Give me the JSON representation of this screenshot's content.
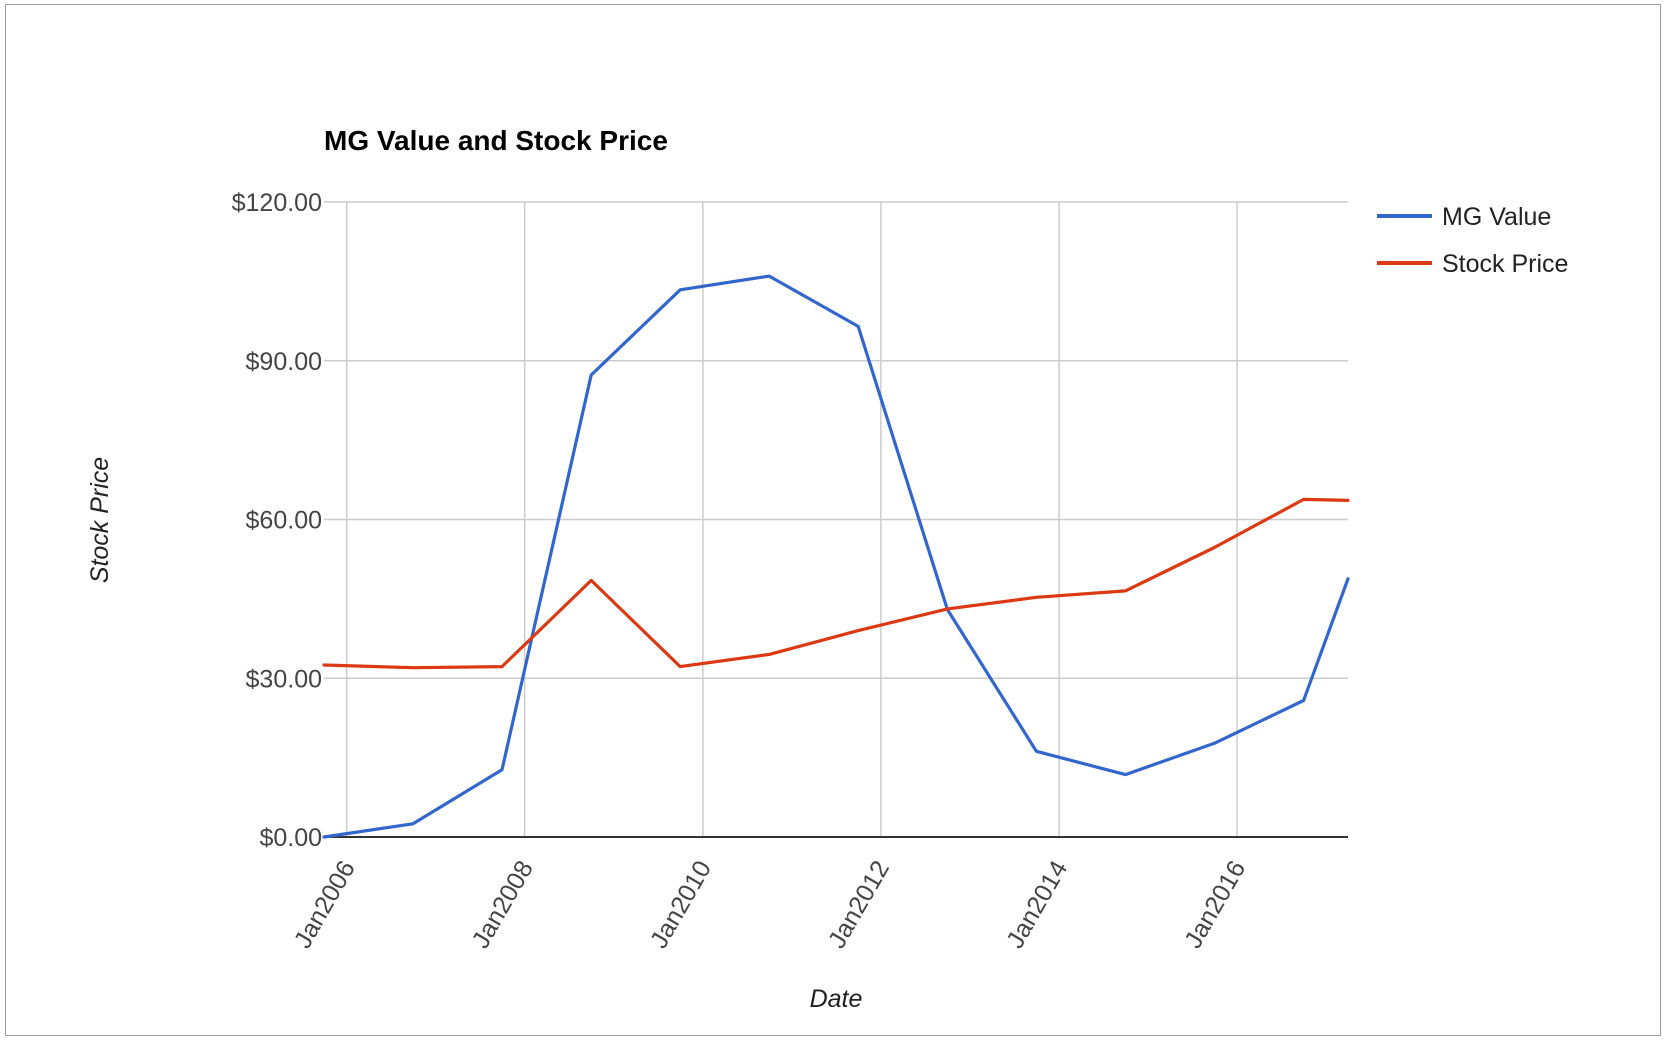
{
  "chart_data": {
    "type": "line",
    "title": "MG Value and Stock Price",
    "xlabel": "Date",
    "ylabel": "Stock Price",
    "x_ticks": [
      "Jan2006",
      "Jan2008",
      "Jan2010",
      "Jan2012",
      "Jan2014",
      "Jan2016"
    ],
    "y_ticks": [
      "$0.00",
      "$30.00",
      "$60.00",
      "$90.00",
      "$120.00"
    ],
    "xlim": [
      "2005-09-30",
      "2017-03-31"
    ],
    "ylim": [
      0,
      120
    ],
    "grid": true,
    "legend_position": "right",
    "x": [
      "2005-09-30",
      "2006-09-30",
      "2007-09-30",
      "2008-09-30",
      "2009-09-30",
      "2010-09-30",
      "2011-09-30",
      "2012-09-30",
      "2013-09-30",
      "2014-09-30",
      "2015-09-30",
      "2016-09-30",
      "2017-03-31"
    ],
    "series": [
      {
        "name": "MG Value",
        "color": "#3366cc",
        "values": [
          0,
          2.5,
          12.7,
          87.3,
          103.4,
          106.0,
          96.5,
          43.0,
          16.2,
          11.8,
          17.7,
          25.8,
          48.8
        ]
      },
      {
        "name": "Stock Price",
        "color": "#dc3912",
        "values": [
          32.5,
          32.0,
          32.2,
          48.5,
          32.2,
          34.5,
          39.0,
          43.1,
          45.3,
          46.5,
          54.7,
          63.8,
          63.6
        ]
      }
    ]
  }
}
